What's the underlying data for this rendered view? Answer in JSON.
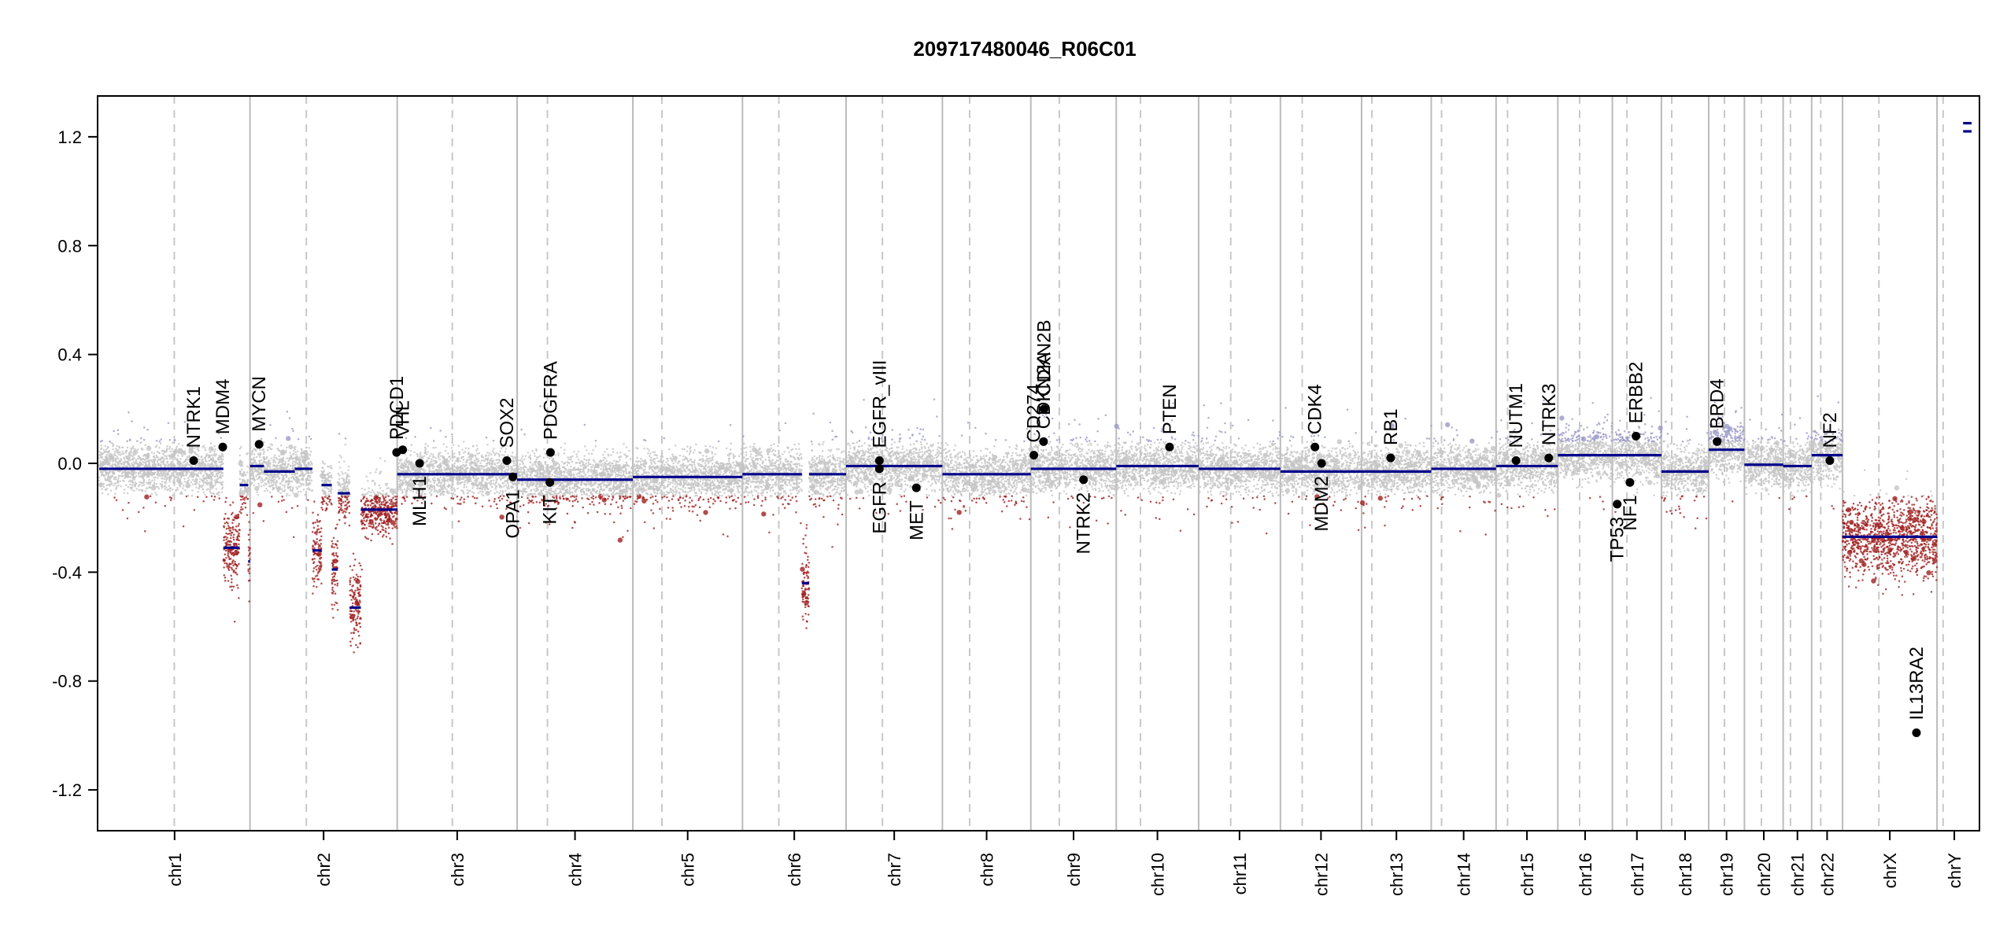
{
  "chart_data": {
    "type": "scatter",
    "title": "209717480046_R06C01",
    "xlabel": "",
    "ylabel": "",
    "ylim": [
      -1.35,
      1.35
    ],
    "y_ticks": [
      {
        "v": 1.2,
        "label": "1.2"
      },
      {
        "v": 0.8,
        "label": "0.8"
      },
      {
        "v": 0.4,
        "label": "0.4"
      },
      {
        "v": 0.0,
        "label": "0.0"
      },
      {
        "v": -0.4,
        "label": "-0.4"
      },
      {
        "v": -0.8,
        "label": "-0.8"
      },
      {
        "v": -1.2,
        "label": "-1.2"
      }
    ],
    "colors": {
      "frame": "#000000",
      "chrom_boundary": "#bbbbbb",
      "centromere": "#c8c8c8",
      "segment": "#00008b",
      "gain_point": "#9a9ac8",
      "neutral_point": "#c4c4c4",
      "loss_point": "#a02020",
      "gene_point": "#000000"
    },
    "chromosomes": [
      {
        "name": "chr1",
        "start": 0,
        "end": 249,
        "centromere": 124
      },
      {
        "name": "chr2",
        "start": 249,
        "end": 492,
        "centromere": 93
      },
      {
        "name": "chr3",
        "start": 492,
        "end": 690,
        "centromere": 91
      },
      {
        "name": "chr4",
        "start": 690,
        "end": 881,
        "centromere": 50
      },
      {
        "name": "chr5",
        "start": 881,
        "end": 1062,
        "centromere": 48
      },
      {
        "name": "chr6",
        "start": 1062,
        "end": 1233,
        "centromere": 60
      },
      {
        "name": "chr7",
        "start": 1233,
        "end": 1392,
        "centromere": 60
      },
      {
        "name": "chr8",
        "start": 1392,
        "end": 1538,
        "centromere": 45
      },
      {
        "name": "chr9",
        "start": 1538,
        "end": 1679,
        "centromere": 47
      },
      {
        "name": "chr10",
        "start": 1679,
        "end": 1815,
        "centromere": 40
      },
      {
        "name": "chr11",
        "start": 1815,
        "end": 1950,
        "centromere": 53
      },
      {
        "name": "chr12",
        "start": 1950,
        "end": 2084,
        "centromere": 36
      },
      {
        "name": "chr13",
        "start": 2084,
        "end": 2199,
        "centromere": 17
      },
      {
        "name": "chr14",
        "start": 2199,
        "end": 2306,
        "centromere": 17
      },
      {
        "name": "chr15",
        "start": 2306,
        "end": 2408,
        "centromere": 19
      },
      {
        "name": "chr16",
        "start": 2408,
        "end": 2498,
        "centromere": 36
      },
      {
        "name": "chr17",
        "start": 2498,
        "end": 2579,
        "centromere": 24
      },
      {
        "name": "chr18",
        "start": 2579,
        "end": 2657,
        "centromere": 17
      },
      {
        "name": "chr19",
        "start": 2657,
        "end": 2716,
        "centromere": 26
      },
      {
        "name": "chr20",
        "start": 2716,
        "end": 2780,
        "centromere": 28
      },
      {
        "name": "chr21",
        "start": 2780,
        "end": 2827,
        "centromere": 12
      },
      {
        "name": "chr22",
        "start": 2827,
        "end": 2878,
        "centromere": 15
      },
      {
        "name": "chrX",
        "start": 2878,
        "end": 3034,
        "centromere": 60
      },
      {
        "name": "chrY",
        "start": 3034,
        "end": 3091,
        "centromere": 10
      }
    ],
    "segments": [
      {
        "x0": 0,
        "x1": 205,
        "y": -0.02
      },
      {
        "x0": 205,
        "x1": 232,
        "y": -0.31
      },
      {
        "x0": 232,
        "x1": 246,
        "y": -0.08
      },
      {
        "x0": 246,
        "x1": 249,
        "y": -0.36
      },
      {
        "x0": 249,
        "x1": 272,
        "y": -0.01
      },
      {
        "x0": 272,
        "x1": 323,
        "y": -0.03
      },
      {
        "x0": 323,
        "x1": 352,
        "y": -0.02
      },
      {
        "x0": 352,
        "x1": 367,
        "y": -0.32
      },
      {
        "x0": 367,
        "x1": 384,
        "y": -0.08
      },
      {
        "x0": 384,
        "x1": 394,
        "y": -0.39
      },
      {
        "x0": 394,
        "x1": 414,
        "y": -0.11
      },
      {
        "x0": 414,
        "x1": 432,
        "y": -0.53
      },
      {
        "x0": 432,
        "x1": 492,
        "y": -0.17
      },
      {
        "x0": 492,
        "x1": 690,
        "y": -0.04
      },
      {
        "x0": 690,
        "x1": 881,
        "y": -0.06
      },
      {
        "x0": 881,
        "x1": 1062,
        "y": -0.05
      },
      {
        "x0": 1062,
        "x1": 1160,
        "y": -0.04
      },
      {
        "x0": 1160,
        "x1": 1172,
        "y": -0.44
      },
      {
        "x0": 1172,
        "x1": 1233,
        "y": -0.04
      },
      {
        "x0": 1233,
        "x1": 1392,
        "y": -0.01
      },
      {
        "x0": 1392,
        "x1": 1538,
        "y": -0.04
      },
      {
        "x0": 1538,
        "x1": 1679,
        "y": -0.02
      },
      {
        "x0": 1679,
        "x1": 1815,
        "y": -0.01
      },
      {
        "x0": 1815,
        "x1": 1950,
        "y": -0.02
      },
      {
        "x0": 1950,
        "x1": 2084,
        "y": -0.03
      },
      {
        "x0": 2084,
        "x1": 2199,
        "y": -0.03
      },
      {
        "x0": 2199,
        "x1": 2306,
        "y": -0.02
      },
      {
        "x0": 2306,
        "x1": 2408,
        "y": -0.01
      },
      {
        "x0": 2408,
        "x1": 2579,
        "y": 0.03
      },
      {
        "x0": 2579,
        "x1": 2657,
        "y": -0.03
      },
      {
        "x0": 2657,
        "x1": 2716,
        "y": 0.05
      },
      {
        "x0": 2716,
        "x1": 2780,
        "y": -0.005
      },
      {
        "x0": 2780,
        "x1": 2827,
        "y": -0.01
      },
      {
        "x0": 2827,
        "x1": 2878,
        "y": 0.03
      },
      {
        "x0": 2878,
        "x1": 3034,
        "y": -0.27
      },
      {
        "x0": 3077,
        "x1": 3091,
        "y": 1.22
      },
      {
        "x0": 3077,
        "x1": 3091,
        "y": 1.25
      }
    ],
    "genes": [
      {
        "name": "NTRK1",
        "x": 156,
        "y": 0.01,
        "side": "up"
      },
      {
        "name": "MDM4",
        "x": 204,
        "y": 0.06,
        "side": "up"
      },
      {
        "name": "MYCN",
        "x": 264,
        "y": 0.07,
        "side": "up"
      },
      {
        "name": "PDCD1",
        "x": 491,
        "y": 0.04,
        "side": "up"
      },
      {
        "name": "VHL",
        "x": 501,
        "y": 0.05,
        "side": "up"
      },
      {
        "name": "MLH1",
        "x": 529,
        "y": 0.0,
        "side": "down"
      },
      {
        "name": "SOX2",
        "x": 673,
        "y": 0.01,
        "side": "up"
      },
      {
        "name": "OPA1",
        "x": 683,
        "y": -0.05,
        "side": "down"
      },
      {
        "name": "PDGFRA",
        "x": 745,
        "y": 0.04,
        "side": "up"
      },
      {
        "name": "KIT",
        "x": 744,
        "y": -0.07,
        "side": "down"
      },
      {
        "name": "EGFR_vIII",
        "x": 1288,
        "y": 0.01,
        "side": "up"
      },
      {
        "name": "EGFR",
        "x": 1288,
        "y": -0.02,
        "side": "down"
      },
      {
        "name": "MET",
        "x": 1349,
        "y": -0.09,
        "side": "down"
      },
      {
        "name": "CD274",
        "x": 1543,
        "y": 0.03,
        "side": "up"
      },
      {
        "name": "CDKN2A",
        "x": 1559,
        "y": 0.08,
        "side": "up"
      },
      {
        "name": "CDKN2B",
        "x": 1560,
        "y": 0.2,
        "side": "up"
      },
      {
        "name": "NTRK2",
        "x": 1625,
        "y": -0.06,
        "side": "down"
      },
      {
        "name": "PTEN",
        "x": 1767,
        "y": 0.06,
        "side": "up"
      },
      {
        "name": "CDK4",
        "x": 2007,
        "y": 0.06,
        "side": "up"
      },
      {
        "name": "MDM2",
        "x": 2018,
        "y": 0.0,
        "side": "down"
      },
      {
        "name": "RB1",
        "x": 2132,
        "y": 0.02,
        "side": "up"
      },
      {
        "name": "NUTM1",
        "x": 2339,
        "y": 0.01,
        "side": "up"
      },
      {
        "name": "NTRK3",
        "x": 2393,
        "y": 0.02,
        "side": "up"
      },
      {
        "name": "ERBB2",
        "x": 2537,
        "y": 0.1,
        "side": "up"
      },
      {
        "name": "TP53",
        "x": 2506,
        "y": -0.15,
        "side": "down"
      },
      {
        "name": "NF1",
        "x": 2527,
        "y": -0.07,
        "side": "down"
      },
      {
        "name": "BRD4",
        "x": 2671,
        "y": 0.08,
        "side": "up"
      },
      {
        "name": "NF2",
        "x": 2857,
        "y": 0.01,
        "side": "up"
      },
      {
        "name": "IL13RA2",
        "x": 3000,
        "y": -0.99,
        "side": "up"
      }
    ]
  }
}
